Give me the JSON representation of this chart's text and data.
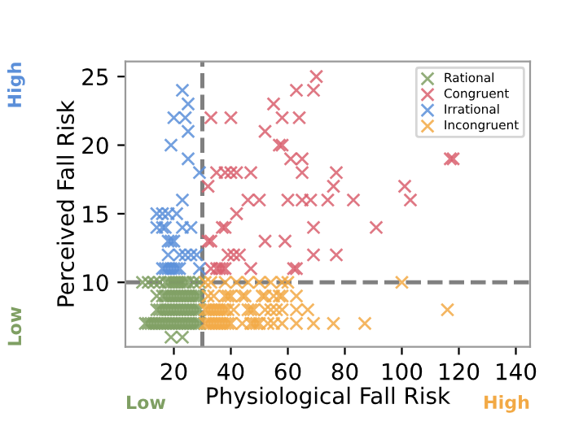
{
  "chart_data": {
    "type": "scatter",
    "xlabel": "Physiological Fall Risk",
    "ylabel": "Perceived Fall Risk",
    "xlim": [
      3,
      145
    ],
    "ylim": [
      5.3,
      26.1
    ],
    "xticks": [
      20,
      40,
      60,
      80,
      100,
      120,
      140
    ],
    "yticks": [
      10,
      15,
      20,
      25
    ],
    "marker": "cross",
    "legend": "top right",
    "grid": false,
    "ref_lines": [
      {
        "axis": "x",
        "value": 30,
        "color": "#808080",
        "line_style": "dashed"
      },
      {
        "axis": "y",
        "value": 10,
        "color": "#808080",
        "line_style": "dashed"
      }
    ],
    "annotations": [
      "Low",
      "High",
      "Low",
      "High"
    ],
    "series": [
      {
        "name": "Rational",
        "color": "#7f9f63",
        "x": [
          9,
          11,
          13,
          15,
          17,
          18,
          19,
          20,
          21,
          22,
          23,
          24,
          25,
          27,
          29,
          14,
          16,
          17,
          18,
          19,
          20,
          21,
          22,
          23,
          24,
          25,
          26,
          27,
          28,
          29,
          14,
          15,
          16,
          17,
          18,
          19,
          20,
          21,
          22,
          23,
          24,
          25,
          26,
          27,
          28,
          29,
          10,
          11,
          12,
          13,
          14,
          15,
          16,
          17,
          18,
          19,
          20,
          21,
          22,
          23,
          24,
          25,
          26,
          27,
          28,
          29,
          19,
          23
        ],
        "values": [
          10,
          10,
          10,
          10,
          10,
          10,
          10,
          10,
          10,
          10,
          10,
          10,
          10,
          10,
          10,
          9,
          9,
          9,
          9,
          9,
          9,
          9,
          9,
          9,
          9,
          9,
          9,
          9,
          9,
          9,
          8,
          8,
          8,
          8,
          8,
          8,
          8,
          8,
          8,
          8,
          8,
          8,
          8,
          8,
          8,
          8,
          7,
          7,
          7,
          7,
          7,
          7,
          7,
          7,
          7,
          7,
          7,
          7,
          7,
          7,
          7,
          7,
          7,
          7,
          7,
          7,
          6,
          6
        ]
      },
      {
        "name": "Congruent",
        "color": "#d9606e",
        "x": [
          33,
          40,
          55,
          52,
          57,
          58,
          35,
          38,
          40,
          42,
          47,
          32,
          46,
          50,
          42,
          37,
          38,
          32,
          33,
          52,
          39,
          41,
          43,
          33,
          35,
          36,
          37,
          38,
          47,
          70,
          63,
          69,
          64,
          58,
          61,
          65,
          117,
          118,
          65,
          77,
          76,
          101,
          60,
          65,
          68,
          74,
          83,
          103,
          69,
          91,
          59,
          69,
          77,
          62,
          63
        ],
        "values": [
          22,
          22,
          23,
          21,
          20,
          20,
          18,
          18,
          18,
          18,
          18,
          17,
          16,
          16,
          15,
          14,
          14,
          13,
          13,
          13,
          12,
          12,
          12,
          11,
          11,
          11,
          11,
          11,
          11,
          25,
          24,
          24,
          22,
          22,
          19,
          19,
          19,
          19,
          18,
          18,
          17,
          17,
          16,
          16,
          16,
          16,
          16,
          16,
          14,
          14,
          13,
          12,
          12,
          11,
          11
        ]
      },
      {
        "name": "Irrational",
        "color": "#5b8fd9",
        "x": [
          23,
          25,
          20,
          24,
          25,
          19,
          25,
          29,
          23,
          14,
          16,
          18,
          21,
          14,
          16,
          17,
          23,
          26,
          18,
          19,
          20,
          18,
          22,
          24,
          26,
          28,
          16,
          17,
          18,
          19,
          20,
          21,
          22,
          29
        ],
        "values": [
          24,
          23,
          22,
          22,
          21,
          20,
          19,
          18,
          16,
          15,
          15,
          15,
          15,
          14,
          14,
          14,
          14,
          14,
          13,
          13,
          13,
          12,
          12,
          12,
          12,
          12,
          11,
          11,
          11,
          11,
          11,
          11,
          11,
          11
        ]
      },
      {
        "name": "Incongruent",
        "color": "#f2a945",
        "x": [
          31,
          33,
          38,
          42,
          46,
          50,
          54,
          58,
          60,
          100,
          32,
          34,
          38,
          39,
          40,
          44,
          45,
          51,
          52,
          55,
          57,
          58,
          63,
          31,
          32,
          33,
          34,
          35,
          36,
          37,
          38,
          39,
          41,
          46,
          47,
          48,
          52,
          54,
          56,
          58,
          63,
          67,
          116,
          31,
          32,
          33,
          34,
          35,
          36,
          37,
          38,
          39,
          40,
          44,
          47,
          48,
          49,
          50,
          53,
          55,
          58,
          63,
          69,
          76,
          87
        ],
        "values": [
          10,
          10,
          10,
          10,
          10,
          10,
          10,
          10,
          10,
          10,
          9,
          9,
          9,
          9,
          9,
          9,
          9,
          9,
          9,
          9,
          9,
          9,
          9,
          8,
          8,
          8,
          8,
          8,
          8,
          8,
          8,
          8,
          8,
          8,
          8,
          8,
          8,
          8,
          8,
          8,
          8,
          8,
          8,
          7,
          7,
          7,
          7,
          7,
          7,
          7,
          7,
          7,
          7,
          7,
          7,
          7,
          7,
          7,
          7,
          7,
          7,
          7,
          7,
          7,
          7
        ]
      }
    ]
  }
}
